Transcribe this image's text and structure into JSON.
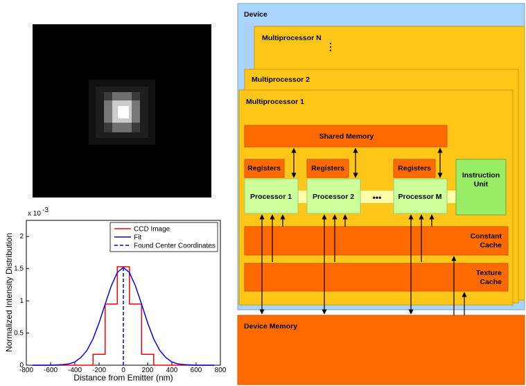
{
  "chart_data": {
    "type": "line",
    "xlabel": "Distance from Emitter (nm)",
    "ylabel": "Normalized Intensity Distribution",
    "y_scale_base": "x 10",
    "y_scale_exponent": "-3",
    "xlim": [
      -800,
      800
    ],
    "xticks": [
      -800,
      -600,
      -400,
      -200,
      0,
      200,
      400,
      600,
      800
    ],
    "ylim": [
      0,
      2.25
    ],
    "yticks": [
      0,
      0.5,
      1,
      1.5,
      2
    ],
    "legend": "upper right",
    "series": [
      {
        "name": "CCD Image",
        "color": "#ff0000",
        "dash": "solid",
        "x": [
          -750,
          -250,
          -250,
          -150,
          -150,
          -50,
          -50,
          50,
          50,
          150,
          150,
          250,
          250,
          750
        ],
        "values": [
          0,
          0,
          0.17,
          0.17,
          0.95,
          0.95,
          1.53,
          1.53,
          0.95,
          0.95,
          0.17,
          0.17,
          0,
          0
        ]
      },
      {
        "name": "Fit",
        "color": "#0000ff",
        "dash": "solid",
        "x": [
          -750,
          -600,
          -500,
          -450,
          -400,
          -350,
          -300,
          -250,
          -200,
          -150,
          -100,
          -50,
          0,
          50,
          100,
          150,
          200,
          250,
          300,
          350,
          400,
          450,
          500,
          600,
          750
        ],
        "values": [
          0,
          0,
          0.01,
          0.02,
          0.05,
          0.12,
          0.23,
          0.41,
          0.66,
          0.95,
          1.23,
          1.44,
          1.52,
          1.44,
          1.23,
          0.95,
          0.66,
          0.41,
          0.23,
          0.12,
          0.05,
          0.02,
          0.01,
          0,
          0
        ]
      },
      {
        "name": "Found Center Coordinates",
        "color": "#0000ff",
        "dash": "dashed",
        "x": [
          0,
          0
        ],
        "values": [
          0,
          1.53
        ]
      }
    ]
  },
  "diagram": {
    "device": "Device",
    "multiprocessors": [
      "Multiprocessor N",
      "Multiprocessor 2",
      "Multiprocessor 1"
    ],
    "shared_memory": "Shared Memory",
    "registers": [
      "Registers",
      "Registers",
      "Registers"
    ],
    "processors": [
      "Processor 1",
      "Processor 2",
      "Processor M"
    ],
    "instruction_unit": [
      "Instruction",
      "Unit"
    ],
    "constant_cache": [
      "Constant",
      "Cache"
    ],
    "texture_cache": [
      "Texture",
      "Cache"
    ],
    "device_memory": "Device Memory"
  }
}
